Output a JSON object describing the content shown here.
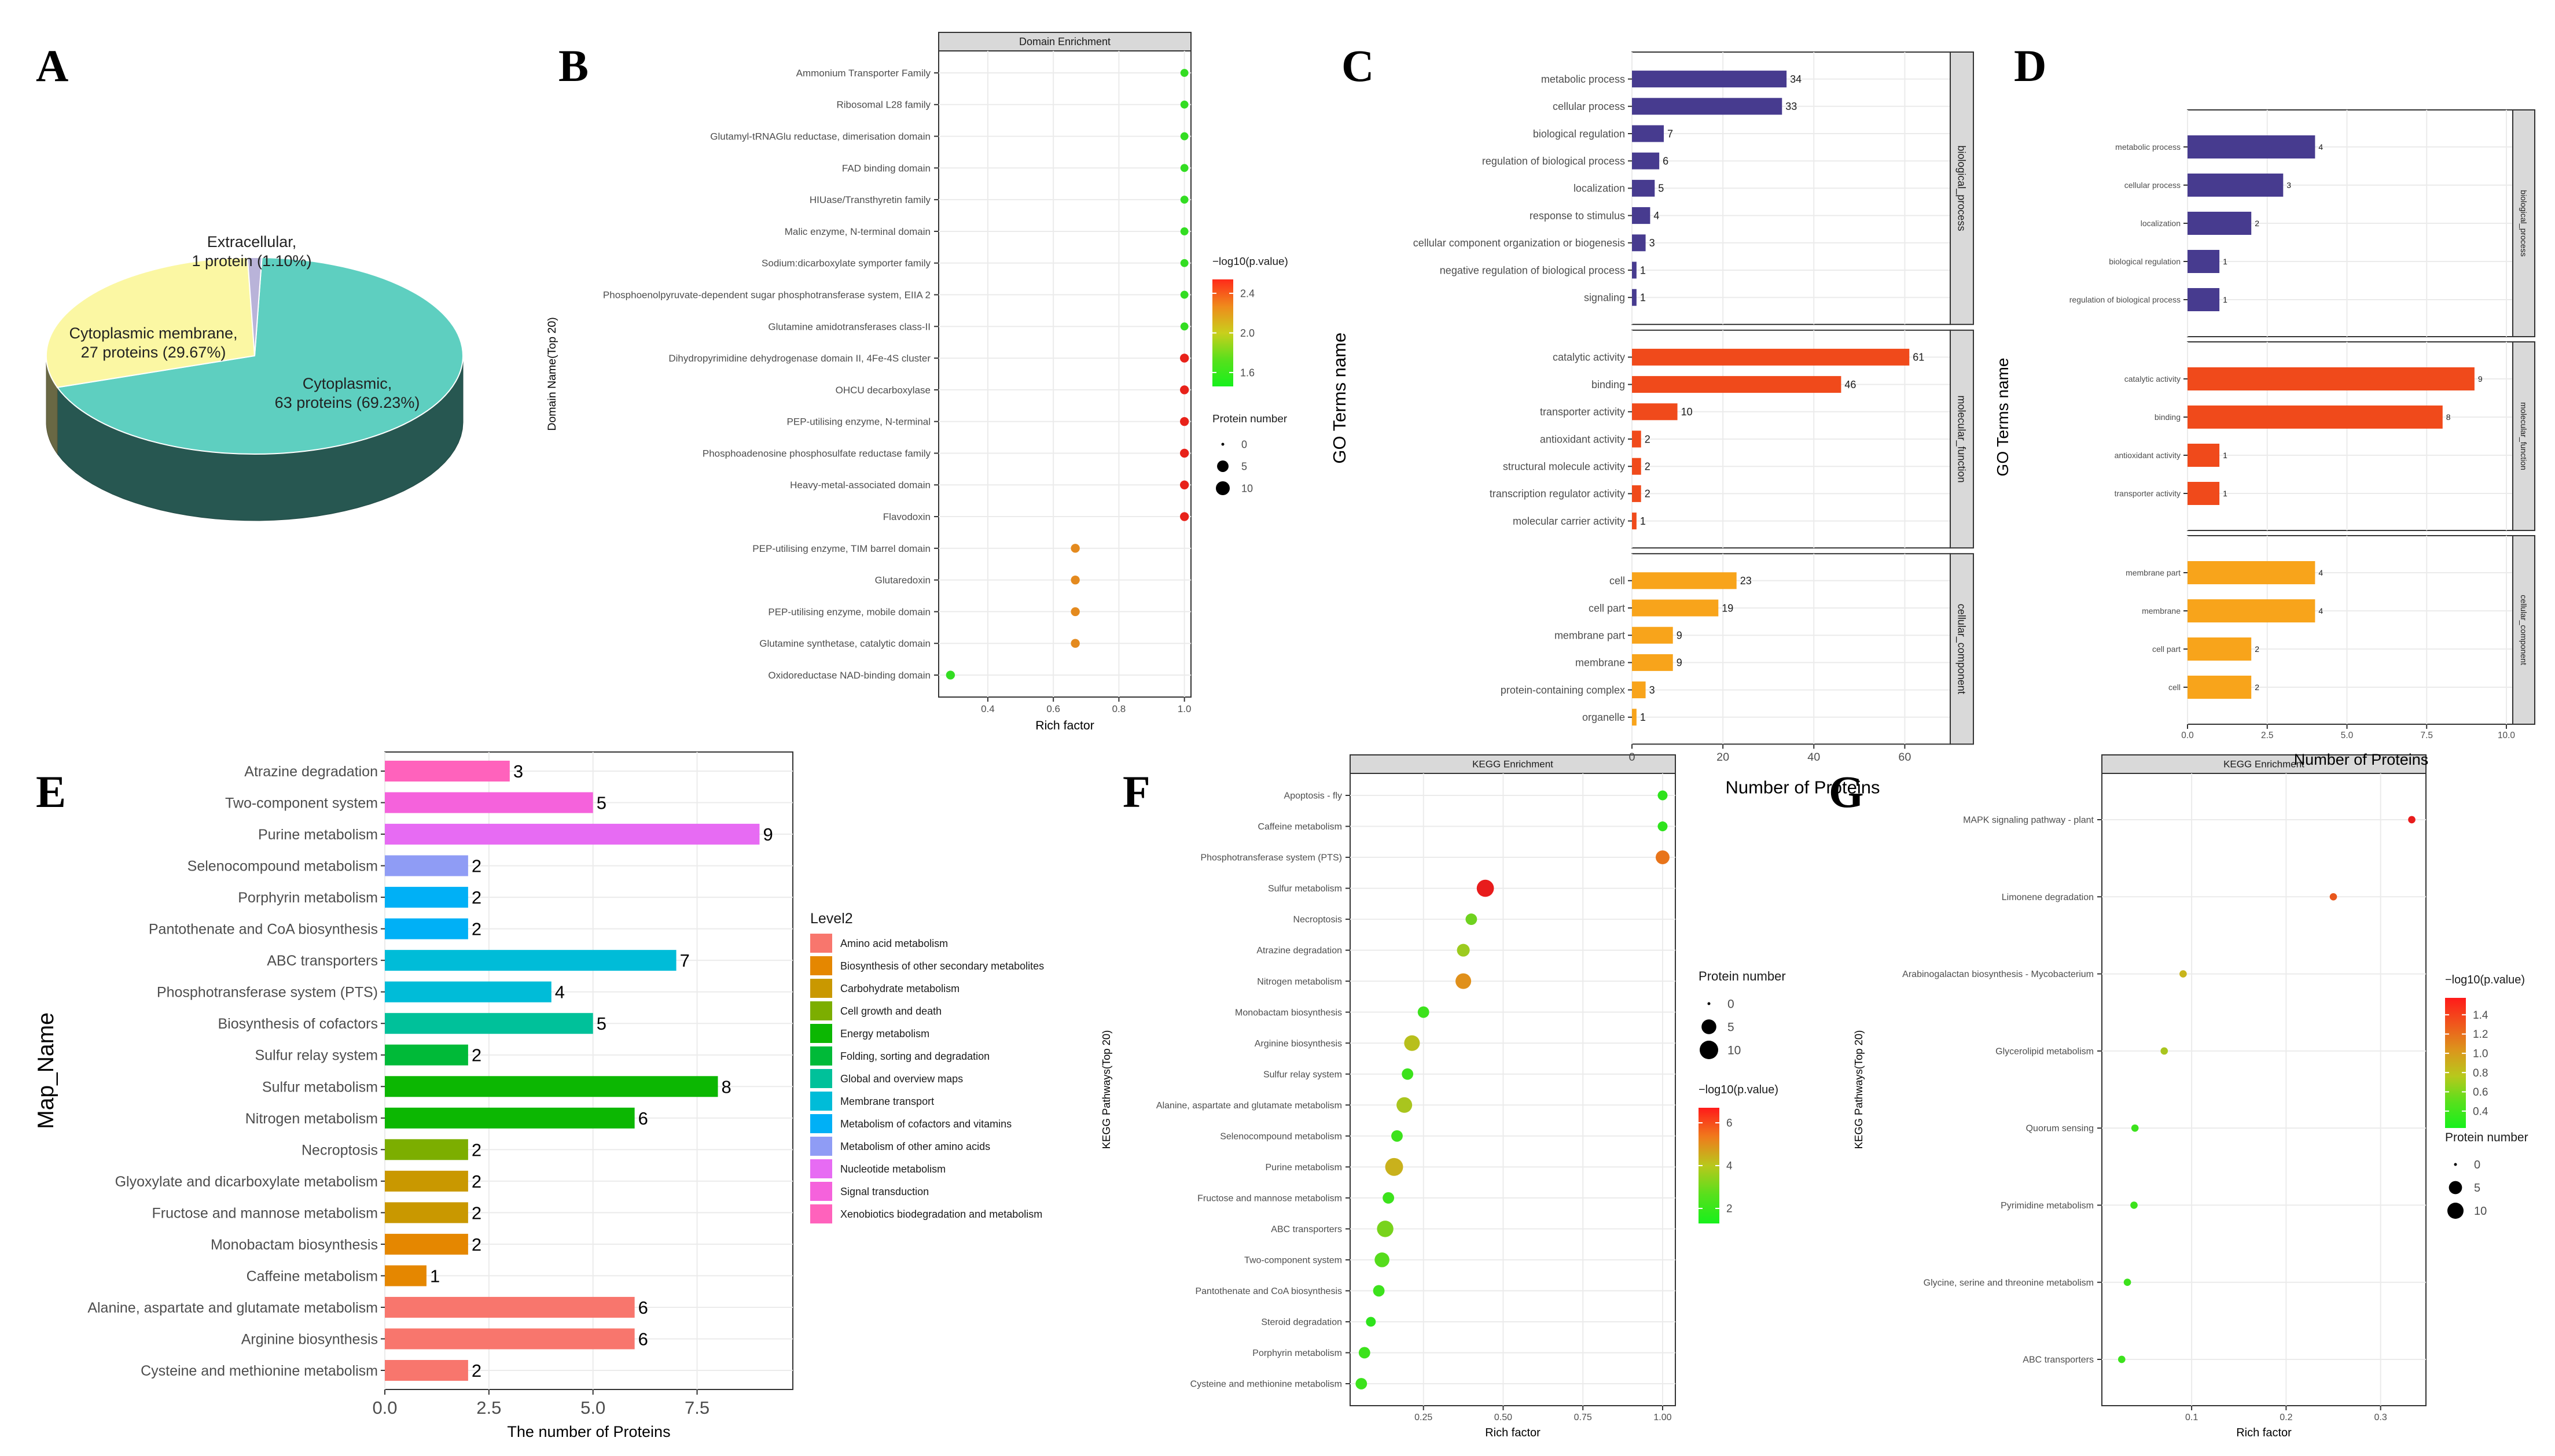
{
  "panel_labels": [
    "A",
    "B",
    "C",
    "D",
    "E",
    "F",
    "G"
  ],
  "chart_data": [
    {
      "panel": "A",
      "type": "pie",
      "slices": [
        {
          "label": "Cytoplasmic,",
          "detail": "63 proteins (69.23%)",
          "value": 69.23,
          "color": "#5ecfc0"
        },
        {
          "label": "Cytoplasmic membrane,",
          "detail": "27 proteins (29.67%)",
          "value": 29.67,
          "color": "#fbf7a3"
        },
        {
          "label": "Extracellular,",
          "detail": "1 protein (1.10%)",
          "value": 1.1,
          "color": "#b9b3d9"
        }
      ]
    },
    {
      "panel": "B",
      "type": "scatter",
      "title": "Domain Enrichment",
      "xlabel": "Rich factor",
      "ylabel": "Domain Name(Top 20)",
      "xlim": [
        0.25,
        1.02
      ],
      "xticks": [
        0.4,
        0.6,
        0.8,
        1.0
      ],
      "xtick_labels": [
        "0.4",
        "0.6",
        "0.8",
        "1.0"
      ],
      "color_title": "−log10(p.value)",
      "color_ticks": [
        "2.4",
        "2.0",
        "1.6"
      ],
      "size_title": "Protein number",
      "size_ticks": [
        "0",
        "5",
        "10"
      ],
      "points": [
        {
          "name": "Ammonium Transporter Family",
          "x": 1.0,
          "size": 1,
          "color": "#33dd22"
        },
        {
          "name": "Ribosomal L28 family",
          "x": 1.0,
          "size": 1,
          "color": "#33dd22"
        },
        {
          "name": "Glutamyl-tRNAGlu reductase, dimerisation domain",
          "x": 1.0,
          "size": 1,
          "color": "#33dd22"
        },
        {
          "name": "FAD binding domain",
          "x": 1.0,
          "size": 1,
          "color": "#33dd22"
        },
        {
          "name": "HIUase/Transthyretin family",
          "x": 1.0,
          "size": 1,
          "color": "#33dd22"
        },
        {
          "name": "Malic enzyme, N-terminal domain",
          "x": 1.0,
          "size": 1,
          "color": "#33dd22"
        },
        {
          "name": "Sodium:dicarboxylate symporter family",
          "x": 1.0,
          "size": 1,
          "color": "#33dd22"
        },
        {
          "name": "Phosphoenolpyruvate-dependent sugar phosphotransferase system, EIIA 2",
          "x": 1.0,
          "size": 1,
          "color": "#33dd22"
        },
        {
          "name": "Glutamine amidotransferases class-II",
          "x": 1.0,
          "size": 1,
          "color": "#33dd22"
        },
        {
          "name": "Dihydropyrimidine dehydrogenase domain II, 4Fe-4S cluster",
          "x": 1.0,
          "size": 2,
          "color": "#e8221a"
        },
        {
          "name": "OHCU decarboxylase",
          "x": 1.0,
          "size": 2,
          "color": "#e8221a"
        },
        {
          "name": "PEP-utilising enzyme, N-terminal",
          "x": 1.0,
          "size": 2,
          "color": "#e8221a"
        },
        {
          "name": "Phosphoadenosine phosphosulfate reductase family",
          "x": 1.0,
          "size": 2,
          "color": "#e8221a"
        },
        {
          "name": "Heavy-metal-associated domain",
          "x": 1.0,
          "size": 2,
          "color": "#e8221a"
        },
        {
          "name": "Flavodoxin",
          "x": 1.0,
          "size": 2,
          "color": "#e8221a"
        },
        {
          "name": "PEP-utilising enzyme, TIM barrel domain",
          "x": 0.667,
          "size": 2,
          "color": "#e48a1e"
        },
        {
          "name": "Glutaredoxin",
          "x": 0.667,
          "size": 2,
          "color": "#e48a1e"
        },
        {
          "name": "PEP-utilising enzyme, mobile domain",
          "x": 0.667,
          "size": 2,
          "color": "#e48a1e"
        },
        {
          "name": "Glutamine synthetase, catalytic domain",
          "x": 0.667,
          "size": 2,
          "color": "#e48a1e"
        },
        {
          "name": "Oxidoreductase NAD-binding domain",
          "x": 0.286,
          "size": 2,
          "color": "#33dd22"
        }
      ]
    },
    {
      "panel": "C",
      "type": "bar",
      "orientation": "horizontal",
      "xlabel": "Number of Proteins",
      "ylabel": "GO Terms name",
      "xlim": [
        0,
        70
      ],
      "xticks": [
        0,
        20,
        40,
        60
      ],
      "xtick_labels": [
        "0",
        "20",
        "40",
        "60"
      ],
      "groups": [
        {
          "name": "biological_process",
          "color": "#473b8f",
          "bars": [
            {
              "label": "metabolic process",
              "value": 34
            },
            {
              "label": "cellular process",
              "value": 33
            },
            {
              "label": "biological regulation",
              "value": 7
            },
            {
              "label": "regulation of biological process",
              "value": 6
            },
            {
              "label": "localization",
              "value": 5
            },
            {
              "label": "response to stimulus",
              "value": 4
            },
            {
              "label": "cellular component organization or biogenesis",
              "value": 3
            },
            {
              "label": "negative regulation of biological process",
              "value": 1
            },
            {
              "label": "signaling",
              "value": 1
            }
          ]
        },
        {
          "name": "molecular_function",
          "color": "#f04a1b",
          "bars": [
            {
              "label": "catalytic activity",
              "value": 61
            },
            {
              "label": "binding",
              "value": 46
            },
            {
              "label": "transporter activity",
              "value": 10
            },
            {
              "label": "antioxidant activity",
              "value": 2
            },
            {
              "label": "structural molecule activity",
              "value": 2
            },
            {
              "label": "transcription regulator activity",
              "value": 2
            },
            {
              "label": "molecular carrier activity",
              "value": 1
            }
          ]
        },
        {
          "name": "cellular_component",
          "color": "#f8a41b",
          "bars": [
            {
              "label": "cell",
              "value": 23
            },
            {
              "label": "cell part",
              "value": 19
            },
            {
              "label": "membrane part",
              "value": 9
            },
            {
              "label": "membrane",
              "value": 9
            },
            {
              "label": "protein-containing complex",
              "value": 3
            },
            {
              "label": "organelle",
              "value": 1
            }
          ]
        }
      ]
    },
    {
      "panel": "D",
      "type": "bar",
      "orientation": "horizontal",
      "xlabel": "Number of Proteins",
      "ylabel": "GO Terms name",
      "xlim": [
        0,
        10.2
      ],
      "xticks": [
        0,
        2.5,
        5,
        7.5,
        10
      ],
      "xtick_labels": [
        "0.0",
        "2.5",
        "5.0",
        "7.5",
        "10.0"
      ],
      "groups": [
        {
          "name": "biological_process",
          "color": "#473b8f",
          "bars": [
            {
              "label": "metabolic process",
              "value": 4
            },
            {
              "label": "cellular process",
              "value": 3
            },
            {
              "label": "localization",
              "value": 2
            },
            {
              "label": "biological regulation",
              "value": 1
            },
            {
              "label": "regulation of biological process",
              "value": 1
            }
          ]
        },
        {
          "name": "molecular_function",
          "color": "#f04a1b",
          "bars": [
            {
              "label": "catalytic activity",
              "value": 9
            },
            {
              "label": "binding",
              "value": 8
            },
            {
              "label": "antioxidant activity",
              "value": 1
            },
            {
              "label": "transporter activity",
              "value": 1
            }
          ]
        },
        {
          "name": "cellular_component",
          "color": "#f8a41b",
          "bars": [
            {
              "label": "membrane part",
              "value": 4
            },
            {
              "label": "membrane",
              "value": 4
            },
            {
              "label": "cell part",
              "value": 2
            },
            {
              "label": "cell",
              "value": 2
            }
          ]
        }
      ]
    },
    {
      "panel": "E",
      "type": "bar",
      "orientation": "horizontal",
      "xlabel": "The number of Proteins",
      "ylabel": "Map_Name",
      "xlim": [
        0,
        9.8
      ],
      "xticks": [
        0,
        2.5,
        5,
        7.5
      ],
      "xtick_labels": [
        "0.0",
        "2.5",
        "5.0",
        "7.5"
      ],
      "legend_title": "Level2",
      "legend": [
        {
          "name": "Amino acid metabolism",
          "color": "#f8766d"
        },
        {
          "name": "Biosynthesis of other secondary metabolites",
          "color": "#e58700"
        },
        {
          "name": "Carbohydrate metabolism",
          "color": "#c99800"
        },
        {
          "name": "Cell growth and death",
          "color": "#7cae00"
        },
        {
          "name": "Energy metabolism",
          "color": "#0cb702"
        },
        {
          "name": "Folding, sorting and degradation",
          "color": "#00ba38"
        },
        {
          "name": "Global and overview maps",
          "color": "#00c19a"
        },
        {
          "name": "Membrane transport",
          "color": "#00bcd8"
        },
        {
          "name": "Metabolism of cofactors and vitamins",
          "color": "#00b0f6"
        },
        {
          "name": "Metabolism of other amino acids",
          "color": "#8f9cf5"
        },
        {
          "name": "Nucleotide metabolism",
          "color": "#e76bf3"
        },
        {
          "name": "Signal transduction",
          "color": "#f562dc"
        },
        {
          "name": "Xenobiotics biodegradation and metabolism",
          "color": "#ff62bc"
        }
      ],
      "bars": [
        {
          "label": "Atrazine degradation",
          "value": 3,
          "color": "#ff62bc"
        },
        {
          "label": "Two-component system",
          "value": 5,
          "color": "#f562dc"
        },
        {
          "label": "Purine metabolism",
          "value": 9,
          "color": "#e76bf3"
        },
        {
          "label": "Selenocompound metabolism",
          "value": 2,
          "color": "#8f9cf5"
        },
        {
          "label": "Porphyrin metabolism",
          "value": 2,
          "color": "#00b0f6"
        },
        {
          "label": "Pantothenate and CoA biosynthesis",
          "value": 2,
          "color": "#00b0f6"
        },
        {
          "label": "ABC transporters",
          "value": 7,
          "color": "#00bcd8"
        },
        {
          "label": "Phosphotransferase system (PTS)",
          "value": 4,
          "color": "#00bcd8"
        },
        {
          "label": "Biosynthesis of cofactors",
          "value": 5,
          "color": "#00c19a"
        },
        {
          "label": "Sulfur relay system",
          "value": 2,
          "color": "#00ba38"
        },
        {
          "label": "Sulfur metabolism",
          "value": 8,
          "color": "#0cb702"
        },
        {
          "label": "Nitrogen metabolism",
          "value": 6,
          "color": "#0cb702"
        },
        {
          "label": "Necroptosis",
          "value": 2,
          "color": "#7cae00"
        },
        {
          "label": "Glyoxylate and dicarboxylate metabolism",
          "value": 2,
          "color": "#c99800"
        },
        {
          "label": "Fructose and mannose metabolism",
          "value": 2,
          "color": "#c99800"
        },
        {
          "label": "Monobactam biosynthesis",
          "value": 2,
          "color": "#e58700"
        },
        {
          "label": "Caffeine metabolism",
          "value": 1,
          "color": "#e58700"
        },
        {
          "label": "Alanine, aspartate and glutamate metabolism",
          "value": 6,
          "color": "#f8766d"
        },
        {
          "label": "Arginine biosynthesis",
          "value": 6,
          "color": "#f8766d"
        },
        {
          "label": "Cysteine and methionine metabolism",
          "value": 2,
          "color": "#f8766d"
        }
      ]
    },
    {
      "panel": "F",
      "type": "scatter",
      "title": "KEGG Enrichment",
      "xlabel": "Rich factor",
      "ylabel": "KEGG Pathways(Top 20)",
      "xlim": [
        0.02,
        1.04
      ],
      "xticks": [
        0.25,
        0.5,
        0.75,
        1.0
      ],
      "xtick_labels": [
        "0.25",
        "0.50",
        "0.75",
        "1.00"
      ],
      "size_title": "Protein number",
      "size_ticks": [
        "0",
        "5",
        "10"
      ],
      "color_title": "−log10(p.value)",
      "color_ticks": [
        "6",
        "4",
        "2"
      ],
      "points": [
        {
          "name": "Apoptosis - fly",
          "x": 1.0,
          "size": 1,
          "color": "#2ee31c"
        },
        {
          "name": "Caffeine metabolism",
          "x": 1.0,
          "size": 1,
          "color": "#2ee31c"
        },
        {
          "name": "Phosphotransferase system (PTS)",
          "x": 1.0,
          "size": 4,
          "color": "#e8741a"
        },
        {
          "name": "Sulfur metabolism",
          "x": 0.444,
          "size": 8,
          "color": "#e81c1c"
        },
        {
          "name": "Necroptosis",
          "x": 0.4,
          "size": 2,
          "color": "#6fd21f"
        },
        {
          "name": "Atrazine degradation",
          "x": 0.375,
          "size": 3,
          "color": "#9ccb1f"
        },
        {
          "name": "Nitrogen metabolism",
          "x": 0.375,
          "size": 6,
          "color": "#e0901b"
        },
        {
          "name": "Monobactam biosynthesis",
          "x": 0.25,
          "size": 2,
          "color": "#3ce21c"
        },
        {
          "name": "Arginine biosynthesis",
          "x": 0.214,
          "size": 6,
          "color": "#b8bf1c"
        },
        {
          "name": "Sulfur relay system",
          "x": 0.2,
          "size": 2,
          "color": "#3ce21c"
        },
        {
          "name": "Alanine, aspartate and glutamate metabolism",
          "x": 0.19,
          "size": 6,
          "color": "#a9c51e"
        },
        {
          "name": "Selenocompound metabolism",
          "x": 0.167,
          "size": 2,
          "color": "#3ce21c"
        },
        {
          "name": "Purine metabolism",
          "x": 0.158,
          "size": 9,
          "color": "#c9b11c"
        },
        {
          "name": "Fructose and mannose metabolism",
          "x": 0.14,
          "size": 2,
          "color": "#3ce21c"
        },
        {
          "name": "ABC transporters",
          "x": 0.13,
          "size": 7,
          "color": "#78d31c"
        },
        {
          "name": "Two-component system",
          "x": 0.12,
          "size": 5,
          "color": "#55dc1c"
        },
        {
          "name": "Pantothenate and CoA biosynthesis",
          "x": 0.11,
          "size": 2,
          "color": "#3ce21c"
        },
        {
          "name": "Steroid degradation",
          "x": 0.085,
          "size": 1,
          "color": "#2ee31c"
        },
        {
          "name": "Porphyrin metabolism",
          "x": 0.065,
          "size": 2,
          "color": "#3ce21c"
        },
        {
          "name": "Cysteine and methionine metabolism",
          "x": 0.055,
          "size": 2,
          "color": "#3ce21c"
        }
      ]
    },
    {
      "panel": "G",
      "type": "scatter",
      "title": "KEGG Enrichment",
      "xlabel": "Rich factor",
      "ylabel": "KEGG Pathways(Top 20)",
      "xlim": [
        0.005,
        0.348
      ],
      "xticks": [
        0.1,
        0.2,
        0.3
      ],
      "xtick_labels": [
        "0.1",
        "0.2",
        "0.3"
      ],
      "color_title": "−log10(p.value)",
      "color_ticks": [
        "1.4",
        "1.2",
        "1.0",
        "0.8",
        "0.6",
        "0.4"
      ],
      "size_title": "Protein number",
      "size_ticks": [
        "0",
        "5",
        "10"
      ],
      "points": [
        {
          "name": "MAPK signaling pathway - plant",
          "x": 0.333,
          "size": 1,
          "color": "#e81c1c"
        },
        {
          "name": "Limonene degradation",
          "x": 0.25,
          "size": 1,
          "color": "#e8561c"
        },
        {
          "name": "Arabinogalactan biosynthesis - Mycobacterium",
          "x": 0.091,
          "size": 1,
          "color": "#c8b51c"
        },
        {
          "name": "Glycerolipid metabolism",
          "x": 0.071,
          "size": 1,
          "color": "#a9c51e"
        },
        {
          "name": "Quorum sensing",
          "x": 0.04,
          "size": 1,
          "color": "#3ce21c"
        },
        {
          "name": "Pyrimidine metabolism",
          "x": 0.039,
          "size": 1,
          "color": "#3ce21c"
        },
        {
          "name": "Glycine, serine and threonine metabolism",
          "x": 0.032,
          "size": 1,
          "color": "#3ce21c"
        },
        {
          "name": "ABC transporters",
          "x": 0.026,
          "size": 1,
          "color": "#3ce21c"
        }
      ]
    }
  ]
}
